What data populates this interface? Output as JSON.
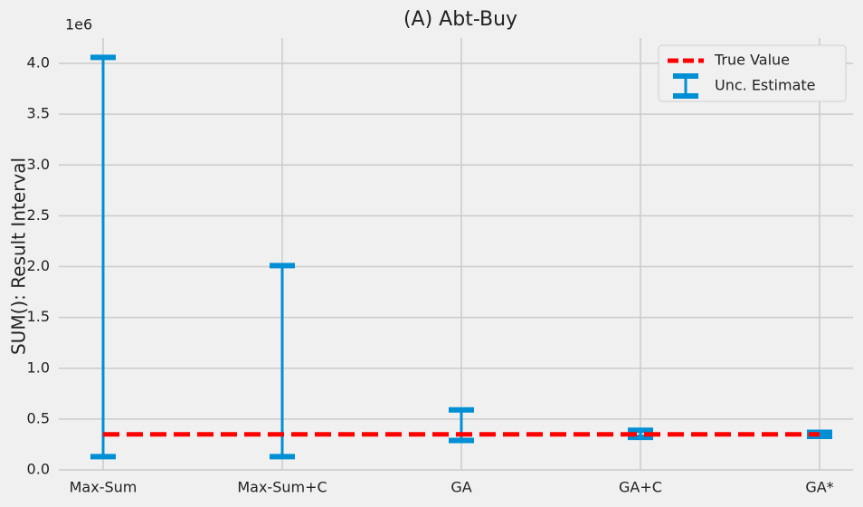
{
  "chart_data": {
    "type": "interval",
    "title": "(A) Abt-Buy",
    "y_label": "SUM(): Result Interval",
    "y_offset_label": "1e6",
    "categories": [
      "Max-Sum",
      "Max-Sum+C",
      "GA",
      "GA+C",
      "GA*"
    ],
    "series": [
      {
        "name": "Unc. Estimate",
        "color": "#008fd5",
        "low": [
          0.13,
          0.13,
          0.29,
          0.32,
          0.33
        ],
        "high": [
          4.06,
          2.01,
          0.59,
          0.39,
          0.37
        ]
      }
    ],
    "reference": {
      "name": "True Value",
      "color": "#ff0000",
      "value": 0.35
    },
    "ylim": [
      0,
      4.25
    ],
    "yticks": [
      {
        "value": 0,
        "label": "0.0"
      },
      0.5,
      {
        "value": 1,
        "label": "1.0"
      },
      1.5,
      {
        "value": 2,
        "label": "2.0"
      },
      2.5,
      {
        "value": 3,
        "label": "3.0"
      },
      3.5,
      {
        "value": 4,
        "label": "4.0"
      }
    ],
    "grid": true,
    "legend": "upper right"
  }
}
